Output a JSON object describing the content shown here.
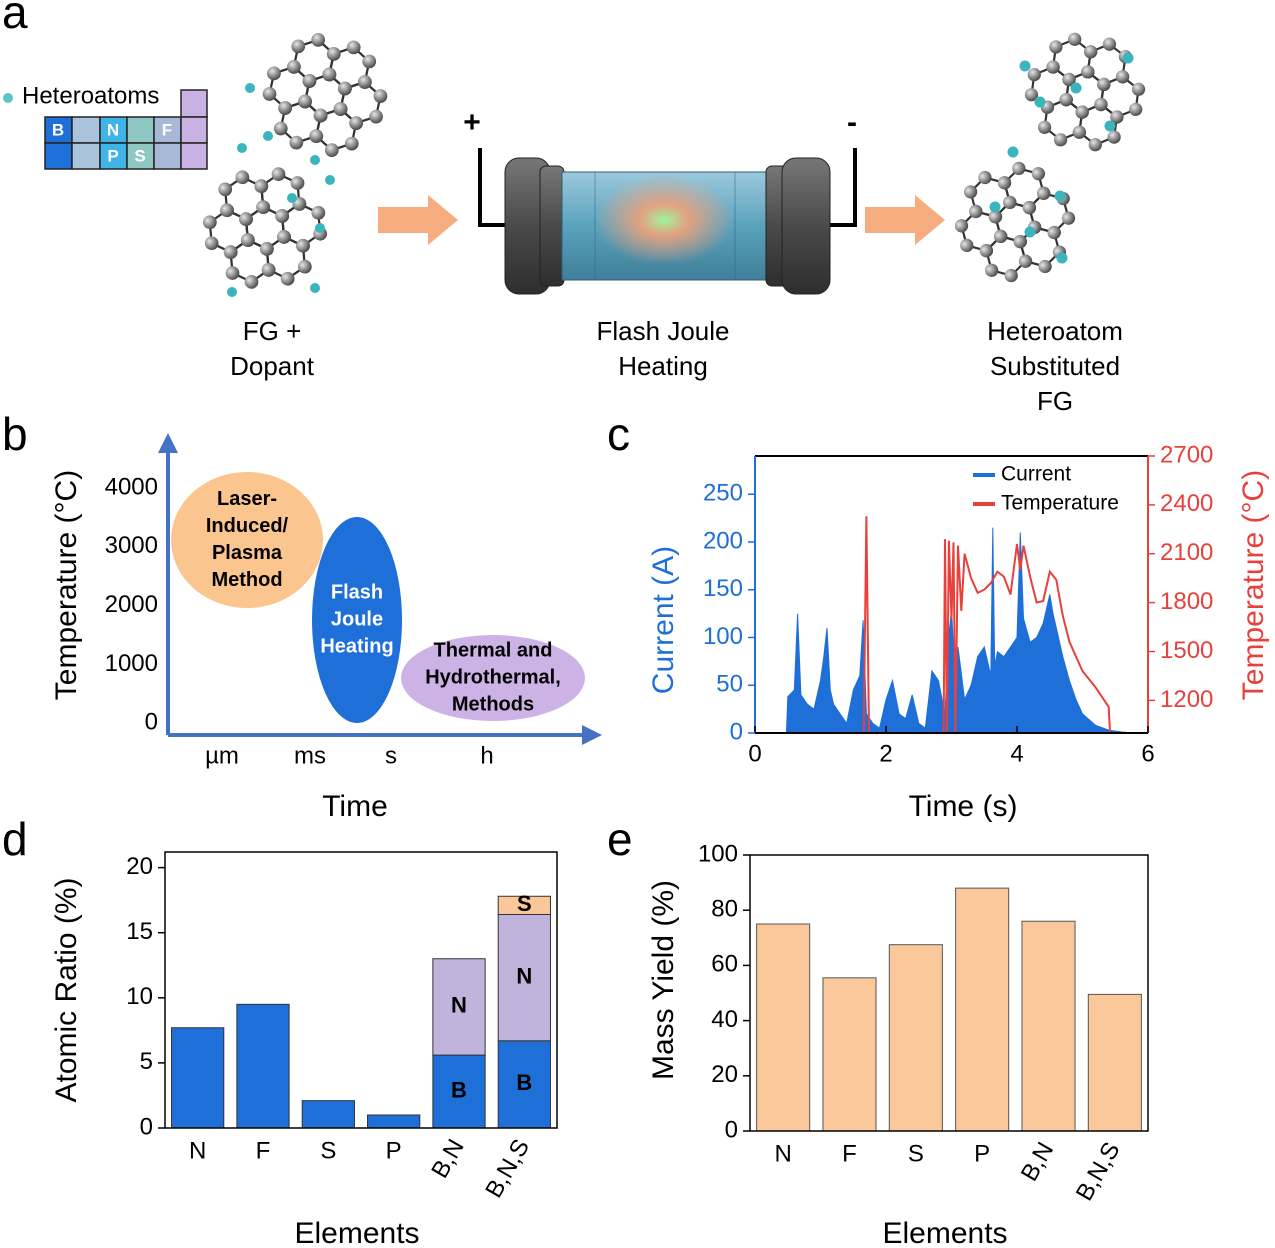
{
  "panel_labels": [
    "a",
    "b",
    "c",
    "d",
    "e"
  ],
  "diagram": {
    "legend": "Heteroatoms",
    "elements": [
      "B",
      "N",
      "P",
      "S",
      "F"
    ],
    "plus": "+",
    "minus": "-",
    "steps": [
      [
        "FG +",
        "Dopant"
      ],
      [
        "Flash Joule",
        "Heating"
      ],
      [
        "Heteroatom",
        "Substituted",
        "FG"
      ]
    ]
  },
  "chart_data": [
    {
      "type": "concept",
      "xlabel": "Time",
      "ylabel": "Temperature (°C)",
      "categories": [
        "µm",
        "ms",
        "s",
        "h"
      ],
      "ylim": [
        -200,
        4900
      ],
      "yticks": [
        0,
        1000,
        2000,
        3000,
        4000
      ],
      "axis_color": "#4472c4",
      "regions": [
        {
          "label_lines": [
            "Laser-",
            "Induced/",
            "Plasma",
            "Method"
          ],
          "color": "#fbc58f",
          "text_color": "#000000"
        },
        {
          "label_lines": [
            "Flash",
            "Joule",
            "Heating"
          ],
          "color": "#1f6fd8",
          "text_color": "#ffffff"
        },
        {
          "label_lines": [
            "Thermal and",
            "Hydrothermal,",
            "Methods"
          ],
          "color": "#cdb2e6",
          "text_color": "#000000"
        }
      ]
    },
    {
      "type": "line",
      "xlabel": "Time (s)",
      "ylabel": "Current  (A)",
      "y2label": "Temperature (°C)",
      "xlim": [
        0,
        6
      ],
      "xticks": [
        0,
        2,
        4,
        6
      ],
      "ylim": [
        0,
        290
      ],
      "yticks": [
        0,
        50,
        100,
        150,
        200,
        250
      ],
      "y2lim": [
        1000,
        2700
      ],
      "y2ticks": [
        1200,
        1500,
        1800,
        2100,
        2400,
        2700
      ],
      "legend": "upper right",
      "series": [
        {
          "name": "Current",
          "color": "#1f6fd8",
          "area": true,
          "x": [
            0.48,
            0.5,
            0.6,
            0.65,
            0.7,
            0.8,
            0.9,
            1.0,
            1.05,
            1.1,
            1.15,
            1.2,
            1.3,
            1.4,
            1.5,
            1.6,
            1.65,
            1.7,
            1.75,
            1.8,
            1.9,
            2.0,
            2.1,
            2.2,
            2.3,
            2.4,
            2.5,
            2.6,
            2.7,
            2.8,
            2.9,
            2.95,
            3.0,
            3.05,
            3.1,
            3.2,
            3.3,
            3.4,
            3.5,
            3.6,
            3.63,
            3.66,
            3.7,
            3.8,
            3.9,
            4.0,
            4.05,
            4.1,
            4.2,
            4.3,
            4.4,
            4.5,
            4.55,
            4.6,
            4.7,
            4.8,
            4.9,
            5.0,
            5.2,
            5.4,
            5.6,
            5.8,
            6.0
          ],
          "values": [
            0,
            38,
            45,
            125,
            40,
            30,
            25,
            55,
            80,
            110,
            45,
            30,
            20,
            10,
            45,
            60,
            118,
            20,
            15,
            10,
            5,
            35,
            55,
            20,
            15,
            40,
            10,
            5,
            65,
            55,
            20,
            95,
            130,
            60,
            90,
            35,
            50,
            80,
            90,
            60,
            215,
            70,
            85,
            80,
            90,
            100,
            210,
            120,
            95,
            100,
            115,
            145,
            125,
            110,
            80,
            55,
            35,
            20,
            8,
            3,
            1,
            0,
            0
          ]
        },
        {
          "name": "Temperature",
          "color": "#e8413c",
          "axis": "y2",
          "x": [
            1.66,
            1.7,
            1.74,
            2.3,
            2.88,
            2.9,
            2.93,
            2.96,
            3.0,
            3.03,
            3.06,
            3.1,
            3.15,
            3.2,
            3.3,
            3.4,
            3.5,
            3.6,
            3.7,
            3.8,
            3.9,
            4.0,
            4.05,
            4.1,
            4.2,
            4.3,
            4.4,
            4.5,
            4.6,
            4.7,
            4.8,
            5.0,
            5.2,
            5.4,
            5.42
          ],
          "values": [
            1000,
            2330,
            1000,
            null,
            1000,
            2190,
            1000,
            2180,
            1700,
            2170,
            1000,
            2150,
            1750,
            2100,
            1950,
            1860,
            1880,
            1920,
            1990,
            1960,
            1850,
            2160,
            2000,
            2150,
            1960,
            1800,
            1810,
            1990,
            1940,
            1720,
            1560,
            1380,
            1280,
            1160,
            1000
          ]
        }
      ]
    },
    {
      "type": "stacked_bar",
      "xlabel": "Elements",
      "ylabel": "Atomic Ratio (%)",
      "categories": [
        "N",
        "F",
        "S",
        "P",
        "B,N",
        "B,N,S"
      ],
      "ylim": [
        0,
        21.2
      ],
      "yticks": [
        0,
        5,
        10,
        15,
        20
      ],
      "series": [
        {
          "name": "B",
          "color": "#1f6fd8",
          "values": [
            7.7,
            9.5,
            2.1,
            1.0,
            5.6,
            6.7
          ]
        },
        {
          "name": "N",
          "color": "#c0b3dc",
          "values": [
            null,
            null,
            null,
            null,
            7.4,
            9.7
          ]
        },
        {
          "name": "S",
          "color": "#f9c79a",
          "values": [
            null,
            null,
            null,
            null,
            null,
            1.4
          ]
        }
      ]
    },
    {
      "type": "bar",
      "xlabel": "Elements",
      "ylabel": "Mass Yield  (%)",
      "categories": [
        "N",
        "F",
        "S",
        "P",
        "B,N",
        "B,N,S"
      ],
      "values": [
        75,
        55.5,
        67.5,
        88,
        76,
        49.5
      ],
      "color": "#fbc89b",
      "ylim": [
        0,
        100
      ],
      "yticks": [
        0,
        20,
        40,
        60,
        80,
        100
      ]
    }
  ]
}
